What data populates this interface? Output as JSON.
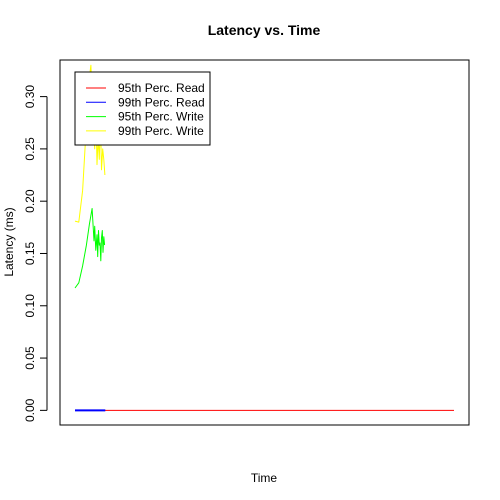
{
  "chart_data": {
    "type": "line",
    "title": "Latency vs. Time",
    "xlabel": "Time",
    "ylabel": "Latency (ms)",
    "ylim": [
      -0.014,
      0.335
    ],
    "xlim": [
      0,
      100
    ],
    "yticks": [
      "0.00",
      "0.05",
      "0.10",
      "0.15",
      "0.20",
      "0.25",
      "0.30"
    ],
    "ytick_values": [
      0,
      0.05,
      0.1,
      0.15,
      0.2,
      0.25,
      0.3
    ],
    "grid": false,
    "legend": "top-left",
    "series": [
      {
        "name": "95th Perc. Read",
        "color": "#ff0000",
        "x": [
          0,
          100
        ],
        "y": [
          0,
          0
        ]
      },
      {
        "name": "99th Perc. Read",
        "color": "#0000ff",
        "x": [
          0,
          5.5,
          6,
          6.5,
          7,
          7.5,
          8
        ],
        "y": [
          0,
          0,
          0,
          0,
          0,
          0,
          0
        ]
      },
      {
        "name": "95th Perc. Write",
        "color": "#00ff00",
        "x": [
          0,
          1,
          2,
          3,
          3.8,
          4.5,
          5,
          5.2,
          5.5,
          5.8,
          6,
          6.2,
          6.4,
          6.6,
          6.8,
          7,
          7.2,
          7.4,
          7.6,
          7.8
        ],
        "y": [
          0.117,
          0.122,
          0.138,
          0.158,
          0.178,
          0.193,
          0.162,
          0.176,
          0.153,
          0.168,
          0.147,
          0.172,
          0.158,
          0.16,
          0.143,
          0.165,
          0.172,
          0.151,
          0.166,
          0.158
        ]
      },
      {
        "name": "99th Perc. Write",
        "color": "#ffff00",
        "x": [
          0,
          1,
          2,
          2.8,
          3.5,
          4.2,
          4.8,
          5.2,
          5.5,
          5.8,
          6.1,
          6.4,
          6.7,
          7,
          7.3,
          7.6,
          7.9
        ],
        "y": [
          0.181,
          0.18,
          0.21,
          0.26,
          0.31,
          0.33,
          0.27,
          0.25,
          0.29,
          0.235,
          0.26,
          0.24,
          0.28,
          0.23,
          0.25,
          0.24,
          0.225
        ]
      }
    ]
  }
}
